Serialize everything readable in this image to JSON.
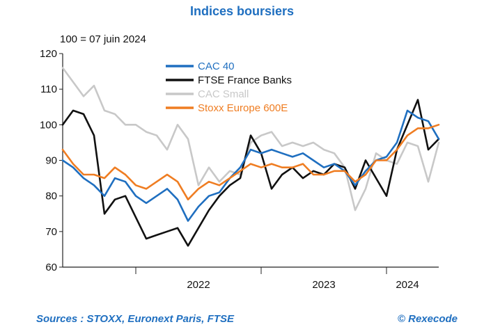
{
  "header": {
    "title": "Indices boursiers",
    "subtitle": "100 = 07 juin 2024"
  },
  "footer": {
    "source": "Sources : STOXX, Euronext Paris, FTSE",
    "credit": "© Rexecode"
  },
  "chart_data": {
    "type": "line",
    "title": "Indices boursiers",
    "subtitle": "100 = 07 juin 2024",
    "x_range": [
      "2021-06",
      "2024-06"
    ],
    "x_ticks": [
      {
        "label": "2022",
        "center": "2022-07"
      },
      {
        "label": "2023",
        "center": "2023-07"
      },
      {
        "label": "2024",
        "center": "2024-03"
      }
    ],
    "year_boundaries": [
      "2022-01",
      "2023-01",
      "2024-01"
    ],
    "ylim": [
      60,
      120
    ],
    "y_ticks": [
      60,
      70,
      80,
      90,
      100,
      110,
      120
    ],
    "grid": false,
    "legend_position": "top-center",
    "series": [
      {
        "name": "CAC Small",
        "color": "#c8c8c8",
        "x": [
          "2021-06",
          "2021-07",
          "2021-08",
          "2021-09",
          "2021-10",
          "2021-11",
          "2021-12",
          "2022-01",
          "2022-02",
          "2022-03",
          "2022-04",
          "2022-05",
          "2022-06",
          "2022-07",
          "2022-08",
          "2022-09",
          "2022-10",
          "2022-11",
          "2022-12",
          "2023-01",
          "2023-02",
          "2023-03",
          "2023-04",
          "2023-05",
          "2023-06",
          "2023-07",
          "2023-08",
          "2023-09",
          "2023-10",
          "2023-11",
          "2023-12",
          "2024-01",
          "2024-02",
          "2024-03",
          "2024-04",
          "2024-05",
          "2024-06"
        ],
        "values": [
          116,
          112,
          108,
          111,
          104,
          103,
          100,
          100,
          98,
          97,
          93,
          100,
          96,
          83,
          88,
          84,
          87,
          86,
          95,
          97,
          98,
          94,
          95,
          94,
          95,
          93,
          92,
          88,
          76,
          82,
          92,
          90,
          89,
          95,
          94,
          84,
          95
        ]
      },
      {
        "name": "FTSE France Banks",
        "color": "#111111",
        "x": [
          "2021-06",
          "2021-07",
          "2021-08",
          "2021-09",
          "2021-10",
          "2021-11",
          "2021-12",
          "2022-01",
          "2022-02",
          "2022-03",
          "2022-04",
          "2022-05",
          "2022-06",
          "2022-07",
          "2022-08",
          "2022-09",
          "2022-10",
          "2022-11",
          "2022-12",
          "2023-01",
          "2023-02",
          "2023-03",
          "2023-04",
          "2023-05",
          "2023-06",
          "2023-07",
          "2023-08",
          "2023-09",
          "2023-10",
          "2023-11",
          "2023-12",
          "2024-01",
          "2024-02",
          "2024-03",
          "2024-04",
          "2024-05",
          "2024-06"
        ],
        "values": [
          100,
          104,
          103,
          97,
          75,
          79,
          80,
          74,
          68,
          69,
          70,
          71,
          66,
          71,
          76,
          80,
          83,
          85,
          97,
          92,
          82,
          86,
          88,
          85,
          87,
          86,
          89,
          88,
          82,
          90,
          85,
          80,
          93,
          100,
          107,
          93,
          96
        ]
      },
      {
        "name": "CAC 40",
        "color": "#1f6fc0",
        "x": [
          "2021-06",
          "2021-07",
          "2021-08",
          "2021-09",
          "2021-10",
          "2021-11",
          "2021-12",
          "2022-01",
          "2022-02",
          "2022-03",
          "2022-04",
          "2022-05",
          "2022-06",
          "2022-07",
          "2022-08",
          "2022-09",
          "2022-10",
          "2022-11",
          "2022-12",
          "2023-01",
          "2023-02",
          "2023-03",
          "2023-04",
          "2023-05",
          "2023-06",
          "2023-07",
          "2023-08",
          "2023-09",
          "2023-10",
          "2023-11",
          "2023-12",
          "2024-01",
          "2024-02",
          "2024-03",
          "2024-04",
          "2024-05",
          "2024-06"
        ],
        "values": [
          90,
          88,
          85,
          83,
          80,
          85,
          84,
          80,
          78,
          80,
          82,
          79,
          73,
          77,
          80,
          81,
          85,
          88,
          93,
          92,
          93,
          92,
          91,
          92,
          90,
          88,
          89,
          87,
          83,
          87,
          90,
          91,
          95,
          104,
          102,
          101,
          96
        ]
      },
      {
        "name": "Stoxx Europe 600E",
        "color": "#ef7d22",
        "x": [
          "2021-06",
          "2021-07",
          "2021-08",
          "2021-09",
          "2021-10",
          "2021-11",
          "2021-12",
          "2022-01",
          "2022-02",
          "2022-03",
          "2022-04",
          "2022-05",
          "2022-06",
          "2022-07",
          "2022-08",
          "2022-09",
          "2022-10",
          "2022-11",
          "2022-12",
          "2023-01",
          "2023-02",
          "2023-03",
          "2023-04",
          "2023-05",
          "2023-06",
          "2023-07",
          "2023-08",
          "2023-09",
          "2023-10",
          "2023-11",
          "2023-12",
          "2024-01",
          "2024-02",
          "2024-03",
          "2024-04",
          "2024-05",
          "2024-06"
        ],
        "values": [
          93,
          89,
          86,
          86,
          85,
          88,
          86,
          83,
          82,
          84,
          86,
          84,
          79,
          82,
          84,
          83,
          85,
          87,
          89,
          88,
          89,
          88,
          88,
          89,
          86,
          86,
          87,
          87,
          84,
          86,
          90,
          90,
          93,
          97,
          99,
          99,
          100
        ]
      }
    ]
  }
}
